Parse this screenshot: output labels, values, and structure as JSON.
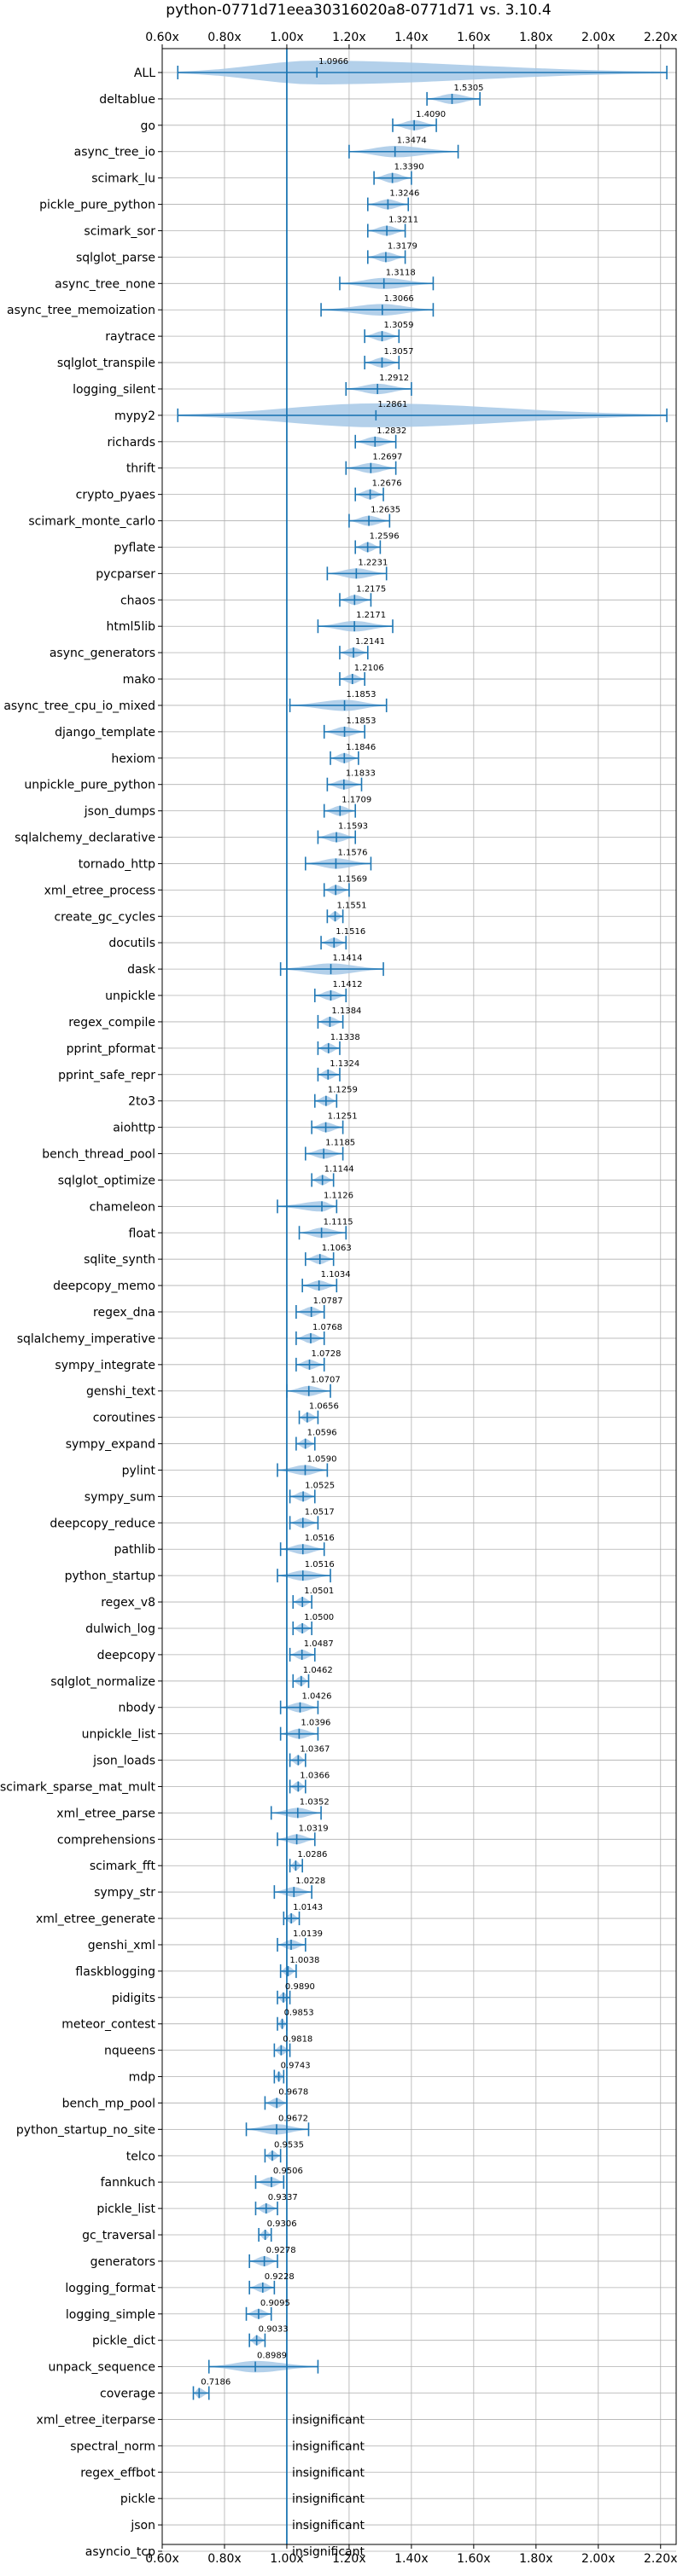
{
  "chart_data": {
    "type": "violin",
    "title": "python-0771d71eea30316020a8-0771d71 vs. 3.10.4",
    "xlim": [
      0.6,
      2.25
    ],
    "xticks": [
      0.6,
      0.8,
      1.0,
      1.2,
      1.4,
      1.6,
      1.8,
      2.0,
      2.2
    ],
    "xtick_labels": [
      "0.60x",
      "0.80x",
      "1.00x",
      "1.20x",
      "1.40x",
      "1.60x",
      "1.80x",
      "2.00x",
      "2.20x"
    ],
    "reference_line": 1.0,
    "grid": true,
    "colors": {
      "violin": "#a6c8e6",
      "line": "#1f77b4",
      "grid": "#b0b0b0"
    },
    "insignificant_label": "insignificant",
    "benchmarks": [
      {
        "name": "ALL",
        "value": 1.0966,
        "label": "1.0966",
        "min": 0.65,
        "max": 2.22
      },
      {
        "name": "deltablue",
        "value": 1.5305,
        "label": "1.5305",
        "min": 1.45,
        "max": 1.62
      },
      {
        "name": "go",
        "value": 1.409,
        "label": "1.4090",
        "min": 1.34,
        "max": 1.48
      },
      {
        "name": "async_tree_io",
        "value": 1.3474,
        "label": "1.3474",
        "min": 1.2,
        "max": 1.55
      },
      {
        "name": "scimark_lu",
        "value": 1.339,
        "label": "1.3390",
        "min": 1.28,
        "max": 1.4
      },
      {
        "name": "pickle_pure_python",
        "value": 1.3246,
        "label": "1.3246",
        "min": 1.26,
        "max": 1.39
      },
      {
        "name": "scimark_sor",
        "value": 1.3211,
        "label": "1.3211",
        "min": 1.26,
        "max": 1.38
      },
      {
        "name": "sqlglot_parse",
        "value": 1.3179,
        "label": "1.3179",
        "min": 1.26,
        "max": 1.38
      },
      {
        "name": "async_tree_none",
        "value": 1.3118,
        "label": "1.3118",
        "min": 1.17,
        "max": 1.47
      },
      {
        "name": "async_tree_memoization",
        "value": 1.3066,
        "label": "1.3066",
        "min": 1.11,
        "max": 1.47
      },
      {
        "name": "raytrace",
        "value": 1.3059,
        "label": "1.3059",
        "min": 1.25,
        "max": 1.36
      },
      {
        "name": "sqlglot_transpile",
        "value": 1.3057,
        "label": "1.3057",
        "min": 1.25,
        "max": 1.36
      },
      {
        "name": "logging_silent",
        "value": 1.2912,
        "label": "1.2912",
        "min": 1.19,
        "max": 1.4
      },
      {
        "name": "mypy2",
        "value": 1.2861,
        "label": "1.2861",
        "min": 0.65,
        "max": 2.22
      },
      {
        "name": "richards",
        "value": 1.2832,
        "label": "1.2832",
        "min": 1.22,
        "max": 1.35
      },
      {
        "name": "thrift",
        "value": 1.2697,
        "label": "1.2697",
        "min": 1.19,
        "max": 1.35
      },
      {
        "name": "crypto_pyaes",
        "value": 1.2676,
        "label": "1.2676",
        "min": 1.22,
        "max": 1.31
      },
      {
        "name": "scimark_monte_carlo",
        "value": 1.2635,
        "label": "1.2635",
        "min": 1.2,
        "max": 1.33
      },
      {
        "name": "pyflate",
        "value": 1.2596,
        "label": "1.2596",
        "min": 1.22,
        "max": 1.3
      },
      {
        "name": "pycparser",
        "value": 1.2231,
        "label": "1.2231",
        "min": 1.13,
        "max": 1.32
      },
      {
        "name": "chaos",
        "value": 1.2175,
        "label": "1.2175",
        "min": 1.17,
        "max": 1.27
      },
      {
        "name": "html5lib",
        "value": 1.2171,
        "label": "1.2171",
        "min": 1.1,
        "max": 1.34
      },
      {
        "name": "async_generators",
        "value": 1.2141,
        "label": "1.2141",
        "min": 1.17,
        "max": 1.26
      },
      {
        "name": "mako",
        "value": 1.2106,
        "label": "1.2106",
        "min": 1.17,
        "max": 1.25
      },
      {
        "name": "async_tree_cpu_io_mixed",
        "value": 1.1853,
        "label": "1.1853",
        "min": 1.01,
        "max": 1.32
      },
      {
        "name": "django_template",
        "value": 1.1853,
        "label": "1.1853",
        "min": 1.12,
        "max": 1.25
      },
      {
        "name": "hexiom",
        "value": 1.1846,
        "label": "1.1846",
        "min": 1.14,
        "max": 1.23
      },
      {
        "name": "unpickle_pure_python",
        "value": 1.1833,
        "label": "1.1833",
        "min": 1.13,
        "max": 1.24
      },
      {
        "name": "json_dumps",
        "value": 1.1709,
        "label": "1.1709",
        "min": 1.12,
        "max": 1.22
      },
      {
        "name": "sqlalchemy_declarative",
        "value": 1.1593,
        "label": "1.1593",
        "min": 1.1,
        "max": 1.22
      },
      {
        "name": "tornado_http",
        "value": 1.1576,
        "label": "1.1576",
        "min": 1.06,
        "max": 1.27
      },
      {
        "name": "xml_etree_process",
        "value": 1.1569,
        "label": "1.1569",
        "min": 1.12,
        "max": 1.2
      },
      {
        "name": "create_gc_cycles",
        "value": 1.1551,
        "label": "1.1551",
        "min": 1.13,
        "max": 1.18
      },
      {
        "name": "docutils",
        "value": 1.1516,
        "label": "1.1516",
        "min": 1.11,
        "max": 1.19
      },
      {
        "name": "dask",
        "value": 1.1414,
        "label": "1.1414",
        "min": 0.98,
        "max": 1.31
      },
      {
        "name": "unpickle",
        "value": 1.1412,
        "label": "1.1412",
        "min": 1.09,
        "max": 1.19
      },
      {
        "name": "regex_compile",
        "value": 1.1384,
        "label": "1.1384",
        "min": 1.1,
        "max": 1.18
      },
      {
        "name": "pprint_pformat",
        "value": 1.1338,
        "label": "1.1338",
        "min": 1.1,
        "max": 1.17
      },
      {
        "name": "pprint_safe_repr",
        "value": 1.1324,
        "label": "1.1324",
        "min": 1.1,
        "max": 1.17
      },
      {
        "name": "2to3",
        "value": 1.1259,
        "label": "1.1259",
        "min": 1.09,
        "max": 1.16
      },
      {
        "name": "aiohttp",
        "value": 1.1251,
        "label": "1.1251",
        "min": 1.08,
        "max": 1.18
      },
      {
        "name": "bench_thread_pool",
        "value": 1.1185,
        "label": "1.1185",
        "min": 1.06,
        "max": 1.18
      },
      {
        "name": "sqlglot_optimize",
        "value": 1.1144,
        "label": "1.1144",
        "min": 1.08,
        "max": 1.15
      },
      {
        "name": "chameleon",
        "value": 1.1126,
        "label": "1.1126",
        "min": 0.97,
        "max": 1.16
      },
      {
        "name": "float",
        "value": 1.1115,
        "label": "1.1115",
        "min": 1.04,
        "max": 1.19
      },
      {
        "name": "sqlite_synth",
        "value": 1.1063,
        "label": "1.1063",
        "min": 1.06,
        "max": 1.15
      },
      {
        "name": "deepcopy_memo",
        "value": 1.1034,
        "label": "1.1034",
        "min": 1.05,
        "max": 1.16
      },
      {
        "name": "regex_dna",
        "value": 1.0787,
        "label": "1.0787",
        "min": 1.03,
        "max": 1.12
      },
      {
        "name": "sqlalchemy_imperative",
        "value": 1.0768,
        "label": "1.0768",
        "min": 1.03,
        "max": 1.12
      },
      {
        "name": "sympy_integrate",
        "value": 1.0728,
        "label": "1.0728",
        "min": 1.03,
        "max": 1.12
      },
      {
        "name": "genshi_text",
        "value": 1.0707,
        "label": "1.0707",
        "min": 1.0,
        "max": 1.14
      },
      {
        "name": "coroutines",
        "value": 1.0656,
        "label": "1.0656",
        "min": 1.04,
        "max": 1.1
      },
      {
        "name": "sympy_expand",
        "value": 1.0596,
        "label": "1.0596",
        "min": 1.03,
        "max": 1.09
      },
      {
        "name": "pylint",
        "value": 1.059,
        "label": "1.0590",
        "min": 0.97,
        "max": 1.13
      },
      {
        "name": "sympy_sum",
        "value": 1.0525,
        "label": "1.0525",
        "min": 1.01,
        "max": 1.09
      },
      {
        "name": "deepcopy_reduce",
        "value": 1.0517,
        "label": "1.0517",
        "min": 1.01,
        "max": 1.1
      },
      {
        "name": "pathlib",
        "value": 1.0516,
        "label": "1.0516",
        "min": 0.98,
        "max": 1.12
      },
      {
        "name": "python_startup",
        "value": 1.0516,
        "label": "1.0516",
        "min": 0.97,
        "max": 1.14
      },
      {
        "name": "regex_v8",
        "value": 1.0501,
        "label": "1.0501",
        "min": 1.02,
        "max": 1.08
      },
      {
        "name": "dulwich_log",
        "value": 1.05,
        "label": "1.0500",
        "min": 1.02,
        "max": 1.08
      },
      {
        "name": "deepcopy",
        "value": 1.0487,
        "label": "1.0487",
        "min": 1.01,
        "max": 1.09
      },
      {
        "name": "sqlglot_normalize",
        "value": 1.0462,
        "label": "1.0462",
        "min": 1.02,
        "max": 1.07
      },
      {
        "name": "nbody",
        "value": 1.0426,
        "label": "1.0426",
        "min": 0.98,
        "max": 1.1
      },
      {
        "name": "unpickle_list",
        "value": 1.0396,
        "label": "1.0396",
        "min": 0.98,
        "max": 1.1
      },
      {
        "name": "json_loads",
        "value": 1.0367,
        "label": "1.0367",
        "min": 1.01,
        "max": 1.06
      },
      {
        "name": "scimark_sparse_mat_mult",
        "value": 1.0366,
        "label": "1.0366",
        "min": 1.01,
        "max": 1.06
      },
      {
        "name": "xml_etree_parse",
        "value": 1.0352,
        "label": "1.0352",
        "min": 0.95,
        "max": 1.11
      },
      {
        "name": "comprehensions",
        "value": 1.0319,
        "label": "1.0319",
        "min": 0.97,
        "max": 1.09
      },
      {
        "name": "scimark_fft",
        "value": 1.0286,
        "label": "1.0286",
        "min": 1.01,
        "max": 1.05
      },
      {
        "name": "sympy_str",
        "value": 1.0228,
        "label": "1.0228",
        "min": 0.96,
        "max": 1.08
      },
      {
        "name": "xml_etree_generate",
        "value": 1.0143,
        "label": "1.0143",
        "min": 0.99,
        "max": 1.04
      },
      {
        "name": "genshi_xml",
        "value": 1.0139,
        "label": "1.0139",
        "min": 0.97,
        "max": 1.06
      },
      {
        "name": "flaskblogging",
        "value": 1.0038,
        "label": "1.0038",
        "min": 0.98,
        "max": 1.03
      },
      {
        "name": "pidigits",
        "value": 0.989,
        "label": "0.9890",
        "min": 0.97,
        "max": 1.01
      },
      {
        "name": "meteor_contest",
        "value": 0.9853,
        "label": "0.9853",
        "min": 0.97,
        "max": 1.0
      },
      {
        "name": "nqueens",
        "value": 0.9818,
        "label": "0.9818",
        "min": 0.96,
        "max": 1.01
      },
      {
        "name": "mdp",
        "value": 0.9743,
        "label": "0.9743",
        "min": 0.96,
        "max": 0.99
      },
      {
        "name": "bench_mp_pool",
        "value": 0.9678,
        "label": "0.9678",
        "min": 0.93,
        "max": 1.0
      },
      {
        "name": "python_startup_no_site",
        "value": 0.9672,
        "label": "0.9672",
        "min": 0.87,
        "max": 1.07
      },
      {
        "name": "telco",
        "value": 0.9535,
        "label": "0.9535",
        "min": 0.93,
        "max": 0.98
      },
      {
        "name": "fannkuch",
        "value": 0.9506,
        "label": "0.9506",
        "min": 0.9,
        "max": 0.99
      },
      {
        "name": "pickle_list",
        "value": 0.9337,
        "label": "0.9337",
        "min": 0.9,
        "max": 0.97
      },
      {
        "name": "gc_traversal",
        "value": 0.9306,
        "label": "0.9306",
        "min": 0.91,
        "max": 0.95
      },
      {
        "name": "generators",
        "value": 0.9278,
        "label": "0.9278",
        "min": 0.88,
        "max": 0.97
      },
      {
        "name": "logging_format",
        "value": 0.9228,
        "label": "0.9228",
        "min": 0.88,
        "max": 0.96
      },
      {
        "name": "logging_simple",
        "value": 0.9095,
        "label": "0.9095",
        "min": 0.87,
        "max": 0.95
      },
      {
        "name": "pickle_dict",
        "value": 0.9033,
        "label": "0.9033",
        "min": 0.88,
        "max": 0.93
      },
      {
        "name": "unpack_sequence",
        "value": 0.8989,
        "label": "0.8989",
        "min": 0.75,
        "max": 1.1
      },
      {
        "name": "coverage",
        "value": 0.7186,
        "label": "0.7186",
        "min": 0.7,
        "max": 0.75
      },
      {
        "name": "xml_etree_iterparse",
        "value": null,
        "label": "",
        "min": null,
        "max": null
      },
      {
        "name": "spectral_norm",
        "value": null,
        "label": "",
        "min": null,
        "max": null
      },
      {
        "name": "regex_effbot",
        "value": null,
        "label": "",
        "min": null,
        "max": null
      },
      {
        "name": "pickle",
        "value": null,
        "label": "",
        "min": null,
        "max": null
      },
      {
        "name": "json",
        "value": null,
        "label": "",
        "min": null,
        "max": null
      },
      {
        "name": "asyncio_tcp",
        "value": null,
        "label": "",
        "min": null,
        "max": null
      }
    ]
  }
}
